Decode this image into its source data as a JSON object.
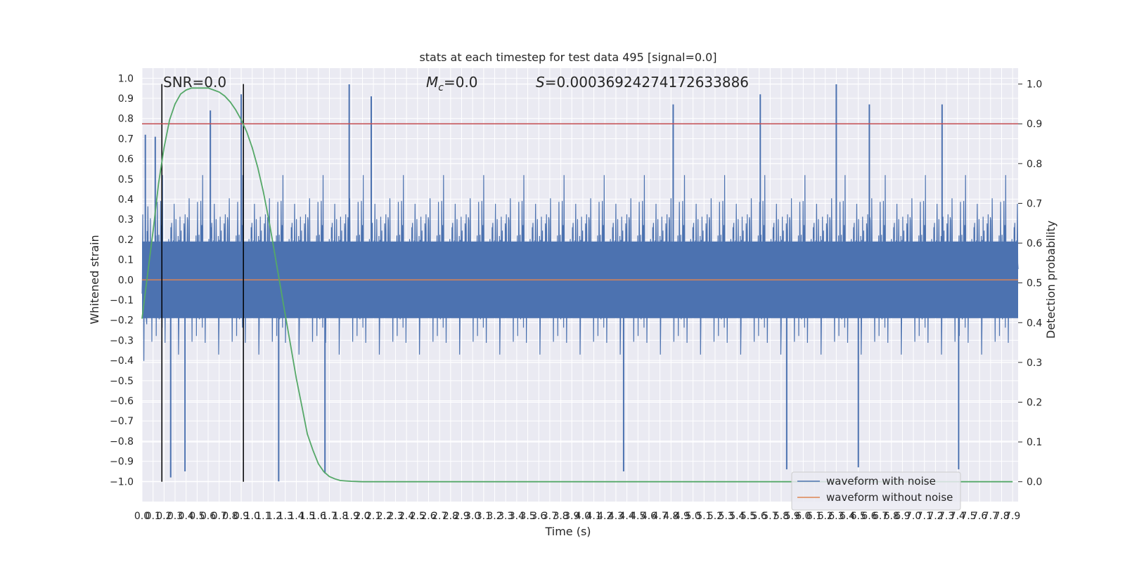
{
  "chart_data": {
    "type": "line",
    "title": "stats at each timestep for test data 495 [signal=0.0]",
    "xlabel": "Time (s)",
    "ylabel": "Whitened strain",
    "ylabel_right": "Detection probability",
    "xlim": [
      0.0,
      7.95
    ],
    "ylim": [
      -1.1,
      1.05
    ],
    "ylim_right": [
      -0.05,
      1.04
    ],
    "x_ticks": [
      0.0,
      0.1,
      0.2,
      0.3,
      0.4,
      0.5,
      0.6,
      0.7,
      0.8,
      0.9,
      1.0,
      1.1,
      1.2,
      1.3,
      1.4,
      1.5,
      1.6,
      1.7,
      1.8,
      1.9,
      2.0,
      2.1,
      2.2,
      2.3,
      2.4,
      2.5,
      2.6,
      2.7,
      2.8,
      2.9,
      3.0,
      3.1,
      3.2,
      3.3,
      3.4,
      3.5,
      3.6,
      3.7,
      3.8,
      3.9,
      4.0,
      4.1,
      4.2,
      4.3,
      4.4,
      4.5,
      4.6,
      4.7,
      4.8,
      4.9,
      5.0,
      5.1,
      5.2,
      5.3,
      5.4,
      5.5,
      5.6,
      5.7,
      5.8,
      5.9,
      6.0,
      6.1,
      6.2,
      6.3,
      6.4,
      6.5,
      6.6,
      6.7,
      6.8,
      6.9,
      7.0,
      7.1,
      7.2,
      7.3,
      7.4,
      7.5,
      7.6,
      7.7,
      7.8,
      7.9
    ],
    "x_tick_labels": [
      "0.0",
      "0.1",
      "0.2",
      "0.3",
      "0.4",
      "0.5",
      "0.6",
      "0.7",
      "0.8",
      "0.9",
      "1.0",
      "1.1",
      "1.2",
      "1.3",
      "1.4",
      "1.5",
      "1.6",
      "1.7",
      "1.8",
      "1.9",
      "2.0",
      "2.1",
      "2.2",
      "2.3",
      "2.4",
      "2.5",
      "2.6",
      "2.7",
      "2.8",
      "2.9",
      "3.0",
      "3.1",
      "3.2",
      "3.3",
      "3.4",
      "3.5",
      "3.6",
      "3.7",
      "3.8",
      "3.9",
      "4.0",
      "4.1",
      "4.2",
      "4.3",
      "4.4",
      "4.5",
      "4.6",
      "4.7",
      "4.8",
      "4.9",
      "5.0",
      "5.1",
      "5.2",
      "5.3",
      "5.4",
      "5.5",
      "5.6",
      "5.7",
      "5.8",
      "5.9",
      "6.0",
      "6.1",
      "6.2",
      "6.3",
      "6.4",
      "6.5",
      "6.6",
      "6.7",
      "6.8",
      "6.9",
      "7.0",
      "7.1",
      "7.2",
      "7.3",
      "7.4",
      "7.5",
      "7.6",
      "7.7",
      "7.8",
      "7.9"
    ],
    "y_ticks": [
      1.0,
      0.9,
      0.8,
      0.7,
      0.6,
      0.5,
      0.4,
      0.3,
      0.2,
      0.1,
      0.0,
      -0.1,
      -0.2,
      -0.3,
      -0.4,
      -0.5,
      -0.6,
      -0.7,
      -0.8,
      -0.9,
      -1.0
    ],
    "y_tick_labels": [
      "1.0",
      "0.9",
      "0.8",
      "0.7",
      "0.6",
      "0.5",
      "0.4",
      "0.3",
      "0.2",
      "0.1",
      "0.0",
      "−0.1",
      "−0.2",
      "−0.3",
      "−0.4",
      "−0.5",
      "−0.6",
      "−0.7",
      "−0.8",
      "−0.9",
      "−1.0"
    ],
    "y_right_ticks": [
      1.0,
      0.9,
      0.8,
      0.7,
      0.6,
      0.5,
      0.4,
      0.3,
      0.2,
      0.1,
      0.0
    ],
    "y_right_tick_labels": [
      "1.0",
      "0.9",
      "0.8",
      "0.7",
      "0.6",
      "0.5",
      "0.4",
      "0.3",
      "0.2",
      "0.1",
      "0.0"
    ],
    "annotations": {
      "snr": "SNR=0.0",
      "mc_symbol": "M",
      "mc_sub": "c",
      "mc_value": "=0.0",
      "s_symbol": "S",
      "s_value": "=0.00036924274172633886"
    },
    "vertical_lines_x": [
      0.18,
      0.92
    ],
    "threshold_right": 0.9,
    "legend": {
      "placement": "lower right",
      "entries": [
        {
          "label": "waveform with noise",
          "color": "#4C72B0"
        },
        {
          "label": "waveform without noise",
          "color": "#DD8452"
        }
      ]
    },
    "series": [
      {
        "name": "waveform with noise",
        "axis": "left",
        "color": "#4C72B0",
        "description_visible": "dense noise band, envelope approx [-1.0, 0.98]",
        "notable_peaks": [
          [
            0.03,
            0.72
          ],
          [
            0.12,
            0.71
          ],
          [
            0.62,
            0.84
          ],
          [
            0.9,
            0.92
          ],
          [
            1.88,
            0.97
          ],
          [
            2.08,
            0.91
          ],
          [
            4.82,
            0.87
          ],
          [
            5.61,
            0.92
          ],
          [
            6.3,
            0.97
          ],
          [
            6.6,
            0.87
          ],
          [
            7.26,
            0.87
          ]
        ],
        "notable_troughs": [
          [
            0.26,
            -0.98
          ],
          [
            0.39,
            -0.95
          ],
          [
            1.24,
            -1.0
          ],
          [
            1.66,
            -0.96
          ],
          [
            4.37,
            -0.95
          ],
          [
            5.85,
            -0.94
          ],
          [
            6.5,
            -0.93
          ],
          [
            7.41,
            -0.94
          ]
        ]
      },
      {
        "name": "waveform without noise",
        "axis": "left",
        "color": "#DD8452",
        "x": [
          0.0,
          7.95
        ],
        "values": [
          0.0,
          0.0
        ]
      },
      {
        "name": "detection probability",
        "axis": "right",
        "color": "#55A868",
        "x": [
          0.0,
          0.05,
          0.1,
          0.15,
          0.2,
          0.25,
          0.3,
          0.35,
          0.4,
          0.45,
          0.5,
          0.55,
          0.6,
          0.65,
          0.7,
          0.75,
          0.8,
          0.85,
          0.9,
          0.95,
          1.0,
          1.05,
          1.1,
          1.15,
          1.2,
          1.25,
          1.3,
          1.35,
          1.4,
          1.45,
          1.5,
          1.55,
          1.6,
          1.65,
          1.7,
          1.75,
          1.8,
          1.85,
          1.9,
          2.0,
          2.2,
          2.5,
          3.0,
          4.0,
          5.0,
          6.0,
          7.0,
          7.9
        ],
        "values": [
          0.41,
          0.52,
          0.63,
          0.75,
          0.84,
          0.91,
          0.95,
          0.975,
          0.985,
          0.99,
          0.99,
          0.99,
          0.99,
          0.985,
          0.98,
          0.97,
          0.955,
          0.935,
          0.91,
          0.88,
          0.84,
          0.79,
          0.73,
          0.66,
          0.58,
          0.5,
          0.42,
          0.34,
          0.26,
          0.19,
          0.12,
          0.08,
          0.045,
          0.025,
          0.013,
          0.007,
          0.003,
          0.002,
          0.001,
          0.0,
          0.0,
          0.0,
          0.0,
          0.0,
          0.0,
          0.0,
          0.0,
          0.0
        ]
      }
    ],
    "grid": true
  }
}
